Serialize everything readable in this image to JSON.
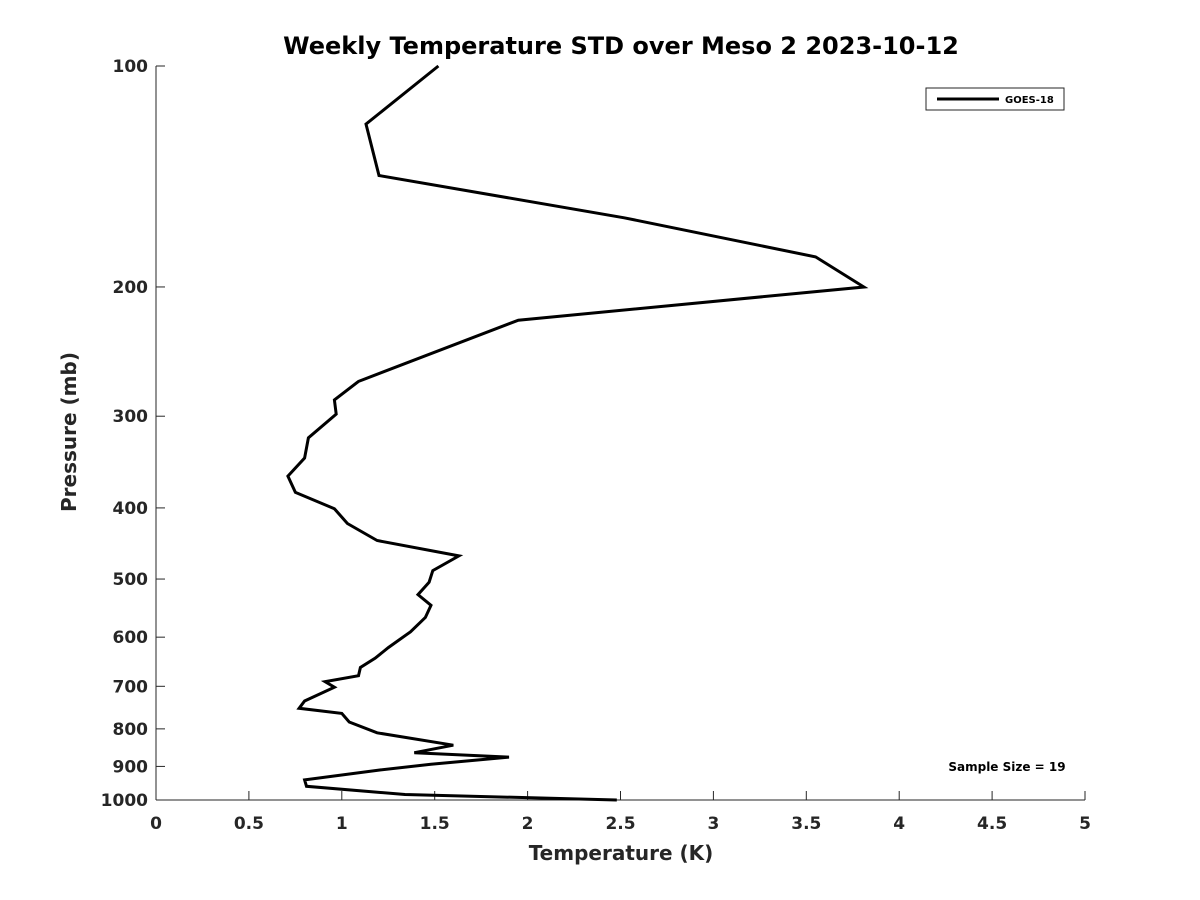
{
  "chart_data": {
    "type": "line",
    "title": "Weekly Temperature STD over Meso 2 2023-10-12",
    "xlabel": "Temperature (K)",
    "ylabel": "Pressure (mb)",
    "xlim": [
      0,
      5
    ],
    "ylim": [
      100,
      1000
    ],
    "y_scale": "log",
    "y_reversed": true,
    "x_ticks": [
      "0",
      "0.5",
      "1",
      "1.5",
      "2",
      "2.5",
      "3",
      "3.5",
      "4",
      "4.5",
      "5"
    ],
    "y_ticks": [
      "100",
      "200",
      "300",
      "400",
      "500",
      "600",
      "700",
      "800",
      "900",
      "1000"
    ],
    "grid": false,
    "legend_position": "top-right",
    "annotation": "Sample Size = 19",
    "series": [
      {
        "name": "GOES-18",
        "color": "#000000",
        "points": [
          [
            1.52,
            100
          ],
          [
            1.13,
            120
          ],
          [
            1.2,
            141
          ],
          [
            2.52,
            161
          ],
          [
            3.55,
            182
          ],
          [
            3.81,
            200
          ],
          [
            1.95,
            222
          ],
          [
            1.09,
            269
          ],
          [
            0.96,
            285
          ],
          [
            0.97,
            298
          ],
          [
            0.82,
            321
          ],
          [
            0.8,
            342
          ],
          [
            0.71,
            362
          ],
          [
            0.75,
            381
          ],
          [
            0.96,
            401
          ],
          [
            1.03,
            420
          ],
          [
            1.19,
            443
          ],
          [
            1.63,
            465
          ],
          [
            1.49,
            487
          ],
          [
            1.47,
            505
          ],
          [
            1.41,
            525
          ],
          [
            1.48,
            543
          ],
          [
            1.45,
            564
          ],
          [
            1.37,
            590
          ],
          [
            1.25,
            620
          ],
          [
            1.18,
            641
          ],
          [
            1.1,
            660
          ],
          [
            1.09,
            677
          ],
          [
            0.91,
            690
          ],
          [
            0.96,
            702
          ],
          [
            0.8,
            733
          ],
          [
            0.77,
            750
          ],
          [
            1.0,
            762
          ],
          [
            1.04,
            783
          ],
          [
            1.19,
            810
          ],
          [
            1.6,
            842
          ],
          [
            1.39,
            862
          ],
          [
            1.9,
            874
          ],
          [
            1.48,
            894
          ],
          [
            1.21,
            910
          ],
          [
            0.8,
            939
          ],
          [
            0.81,
            958
          ],
          [
            1.34,
            983
          ],
          [
            2.48,
            1000
          ]
        ]
      }
    ]
  }
}
